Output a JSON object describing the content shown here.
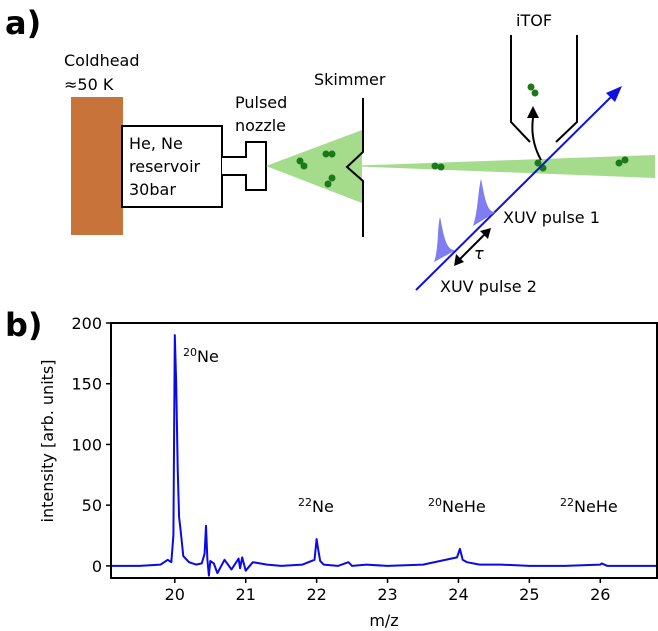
{
  "panel_a": {
    "label": "a)",
    "coldhead_label": [
      "Coldhead",
      "≈50 K"
    ],
    "reservoir_label": [
      "He, Ne",
      "reservoir",
      "30bar"
    ],
    "nozzle_label": [
      "Pulsed",
      "nozzle"
    ],
    "skimmer_label": "Skimmer",
    "itof_label": "iTOF",
    "pulse1_label": "XUV pulse 1",
    "pulse2_label": "XUV pulse 2",
    "delay_label": "τ",
    "colors": {
      "coldhead": "#c8733a",
      "beam": "#a4dc8c",
      "atom": "#1a7a1a",
      "laser": "#1010e0",
      "pulse": "#7070f0"
    }
  },
  "panel_b": {
    "label": "b)",
    "peak_labels": [
      {
        "sup": "20",
        "text": "Ne"
      },
      {
        "sup": "22",
        "text": "Ne"
      },
      {
        "sup": "20",
        "text": "NeHe"
      },
      {
        "sup": "22",
        "text": "NeHe"
      }
    ]
  },
  "chart_data": {
    "type": "line",
    "xlabel": "m/z",
    "ylabel": "intensity [arb. units]",
    "xlim": [
      19.1,
      26.8
    ],
    "ylim": [
      -10,
      200
    ],
    "x_ticks": [
      20,
      21,
      22,
      23,
      24,
      25,
      26
    ],
    "y_ticks": [
      0,
      50,
      100,
      150,
      200
    ],
    "grid": false,
    "color": "#0a0ae6",
    "series": [
      {
        "x": [
          19.1,
          19.5,
          19.8,
          19.85,
          19.9,
          19.95,
          19.98,
          20.0,
          20.02,
          20.04,
          20.06,
          20.08,
          20.12,
          20.2,
          20.3,
          20.38,
          20.42,
          20.44,
          20.46,
          20.48,
          20.5,
          20.55,
          20.6,
          20.7,
          20.8,
          20.9,
          20.92,
          20.95,
          21.0,
          21.1,
          21.2,
          21.3,
          21.5,
          21.8,
          21.97,
          22.0,
          22.02,
          22.05,
          22.1,
          22.3,
          22.45,
          22.5,
          22.7,
          23.0,
          23.5,
          23.98,
          24.02,
          24.06,
          24.12,
          24.3,
          24.6,
          25.0,
          25.5,
          26.0,
          26.02,
          26.1,
          26.5,
          26.8
        ],
        "y": [
          0,
          0,
          1,
          3,
          5,
          3,
          25,
          190,
          150,
          80,
          40,
          30,
          8,
          3,
          1,
          2,
          10,
          33,
          5,
          -8,
          4,
          2,
          -6,
          5,
          -3,
          6,
          -2,
          7,
          -4,
          3,
          2,
          1,
          0,
          1,
          5,
          22,
          14,
          4,
          1,
          0,
          3,
          0,
          1,
          0,
          1,
          7,
          14,
          5,
          3,
          1,
          1,
          0,
          0,
          1,
          2,
          0,
          0,
          0
        ]
      }
    ]
  }
}
